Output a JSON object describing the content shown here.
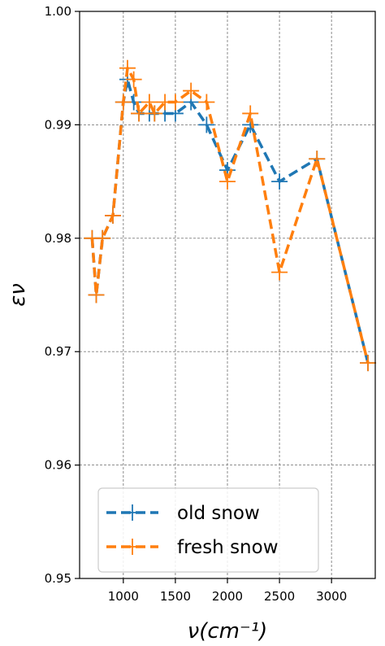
{
  "chart_data": {
    "type": "line",
    "xlabel": "ν(cm⁻¹)",
    "ylabel": "εν",
    "xlim": [
      580,
      3420
    ],
    "ylim": [
      0.95,
      1.0
    ],
    "xticks": [
      1000,
      1500,
      2000,
      2500,
      3000
    ],
    "x_tick_labels": [
      "1000",
      "1500",
      "2000",
      "2500",
      "3000"
    ],
    "yticks": [
      0.95,
      0.96,
      0.97,
      0.98,
      0.99,
      1.0
    ],
    "y_tick_labels": [
      "0.95",
      "0.96",
      "0.97",
      "0.98",
      "0.99",
      "1.00"
    ],
    "grid": true,
    "legend_position": "lower-left",
    "series": [
      {
        "name": "old snow",
        "color": "#1f77b4",
        "x": [
          700,
          740,
          800,
          900,
          1000,
          1040,
          1100,
          1150,
          1250,
          1300,
          1400,
          1500,
          1650,
          1800,
          2000,
          2220,
          2500,
          2860,
          3350
        ],
        "y": [
          0.98,
          0.975,
          0.98,
          0.982,
          0.992,
          0.994,
          0.992,
          0.991,
          0.991,
          0.991,
          0.991,
          0.991,
          0.992,
          0.99,
          0.986,
          0.99,
          0.985,
          0.987,
          0.969
        ]
      },
      {
        "name": "fresh snow",
        "color": "#ff7f0e",
        "x": [
          700,
          740,
          800,
          900,
          1000,
          1040,
          1100,
          1150,
          1250,
          1300,
          1400,
          1500,
          1650,
          1800,
          2000,
          2220,
          2500,
          2860,
          3350
        ],
        "y": [
          0.98,
          0.975,
          0.98,
          0.982,
          0.992,
          0.995,
          0.994,
          0.991,
          0.992,
          0.991,
          0.992,
          0.992,
          0.993,
          0.992,
          0.985,
          0.991,
          0.977,
          0.987,
          0.969
        ]
      }
    ]
  }
}
